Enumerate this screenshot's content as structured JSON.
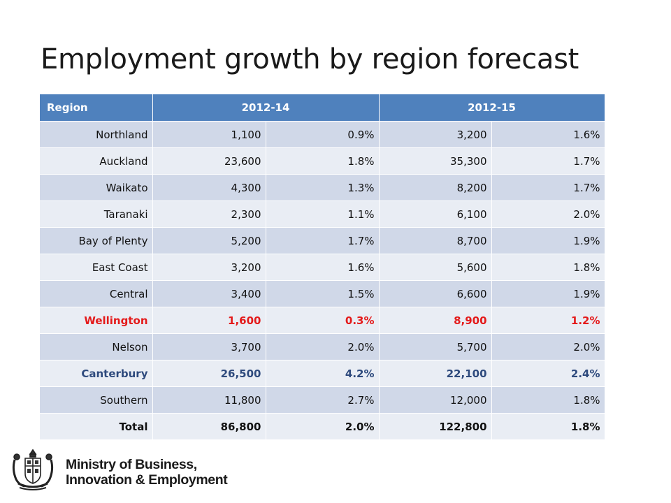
{
  "title": "Employment growth by region forecast",
  "table": {
    "headers": [
      "Region",
      "2012-14",
      "2012-15"
    ],
    "rows": [
      {
        "region": "Northland",
        "n1": "1,100",
        "p1": "0.9%",
        "n2": "3,200",
        "p2": "1.6%",
        "style": "normal"
      },
      {
        "region": "Auckland",
        "n1": "23,600",
        "p1": "1.8%",
        "n2": "35,300",
        "p2": "1.7%",
        "style": "normal"
      },
      {
        "region": "Waikato",
        "n1": "4,300",
        "p1": "1.3%",
        "n2": "8,200",
        "p2": "1.7%",
        "style": "normal"
      },
      {
        "region": "Taranaki",
        "n1": "2,300",
        "p1": "1.1%",
        "n2": "6,100",
        "p2": "2.0%",
        "style": "normal"
      },
      {
        "region": "Bay of Plenty",
        "n1": "5,200",
        "p1": "1.7%",
        "n2": "8,700",
        "p2": "1.9%",
        "style": "normal"
      },
      {
        "region": "East Coast",
        "n1": "3,200",
        "p1": "1.6%",
        "n2": "5,600",
        "p2": "1.8%",
        "style": "normal"
      },
      {
        "region": "Central",
        "n1": "3,400",
        "p1": "1.5%",
        "n2": "6,600",
        "p2": "1.9%",
        "style": "normal"
      },
      {
        "region": "Wellington",
        "n1": "1,600",
        "p1": "0.3%",
        "n2": "8,900",
        "p2": "1.2%",
        "style": "red"
      },
      {
        "region": "Nelson",
        "n1": "3,700",
        "p1": "2.0%",
        "n2": "5,700",
        "p2": "2.0%",
        "style": "normal"
      },
      {
        "region": "Canterbury",
        "n1": "26,500",
        "p1": "4.2%",
        "n2": "22,100",
        "p2": "2.4%",
        "style": "blue"
      },
      {
        "region": "Southern",
        "n1": "11,800",
        "p1": "2.7%",
        "n2": "12,000",
        "p2": "1.8%",
        "style": "normal"
      },
      {
        "region": "Total",
        "n1": "86,800",
        "p1": "2.0%",
        "n2": "122,800",
        "p2": "1.8%",
        "style": "total"
      }
    ]
  },
  "colors": {
    "header": "#4f81bd",
    "row_odd": "#d0d8e8",
    "row_even": "#e9edf4",
    "highlight_red": "#e41a1a",
    "highlight_blue": "#2e4a7d"
  },
  "logo": {
    "line1": "Ministry of Business,",
    "line2": "Innovation & Employment",
    "icon": "nz-coat-of-arms-icon"
  }
}
